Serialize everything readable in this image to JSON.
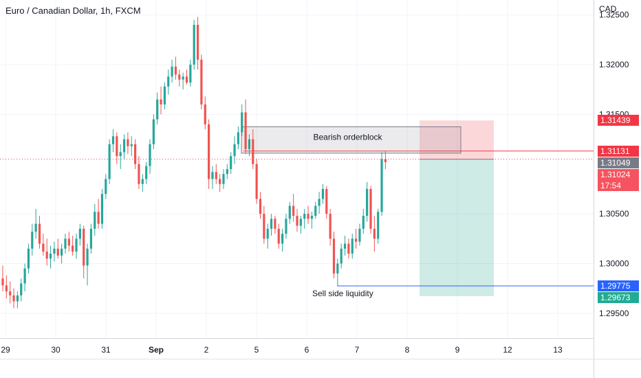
{
  "header": {
    "title": "Euro / Canadian Dollar, 1h, FXCM",
    "currency": "CAD"
  },
  "chart_data": {
    "type": "candlestick",
    "symbol": "EURCAD",
    "timeframe": "1h",
    "source": "FXCM",
    "y_axis": {
      "ticks": [
        "1.32500",
        "1.32000",
        "1.31500",
        "1.30500",
        "1.30000",
        "1.29500"
      ],
      "tick_values": [
        1.325,
        1.32,
        1.315,
        1.305,
        1.3,
        1.295
      ],
      "ylim": [
        1.2925,
        1.3265
      ]
    },
    "x_axis": {
      "ticks": [
        "29",
        "30",
        "31",
        "Sep",
        "2",
        "5",
        "6",
        "7",
        "8",
        "9",
        "12",
        "13"
      ],
      "tick_positions": [
        0,
        1,
        2,
        3,
        4,
        5,
        6,
        7,
        8,
        9,
        10,
        11
      ],
      "xlim": [
        0,
        11.9
      ]
    },
    "candles_ohlc": [
      [
        1.2985,
        1.2998,
        1.2972,
        1.2978
      ],
      [
        1.2978,
        1.2988,
        1.2965,
        1.2972
      ],
      [
        1.2972,
        1.2982,
        1.296,
        1.2968
      ],
      [
        1.2968,
        1.2975,
        1.2955,
        1.2962
      ],
      [
        1.2962,
        1.2972,
        1.2955,
        1.2968
      ],
      [
        1.2968,
        1.2985,
        1.2962,
        1.298
      ],
      [
        1.298,
        1.3,
        1.2972,
        1.2995
      ],
      [
        1.2995,
        1.302,
        1.299,
        1.3015
      ],
      [
        1.3015,
        1.304,
        1.3008,
        1.3032
      ],
      [
        1.3032,
        1.3055,
        1.3025,
        1.304
      ],
      [
        1.304,
        1.3048,
        1.3015,
        1.302
      ],
      [
        1.302,
        1.303,
        1.3008,
        1.3012
      ],
      [
        1.3012,
        1.3025,
        1.2998,
        1.3005
      ],
      [
        1.3005,
        1.3018,
        1.2995,
        1.301
      ],
      [
        1.301,
        1.3022,
        1.3002,
        1.3015
      ],
      [
        1.3015,
        1.3025,
        1.3005,
        1.3008
      ],
      [
        1.3008,
        1.302,
        1.3,
        1.3015
      ],
      [
        1.3015,
        1.303,
        1.301,
        1.3025
      ],
      [
        1.3025,
        1.3032,
        1.3012,
        1.3018
      ],
      [
        1.3018,
        1.3028,
        1.3008,
        1.3012
      ],
      [
        1.3012,
        1.303,
        1.3005,
        1.3025
      ],
      [
        1.3025,
        1.304,
        1.3018,
        1.3035
      ],
      [
        1.3035,
        1.3038,
        1.2985,
        1.2998
      ],
      [
        1.2998,
        1.302,
        1.2978,
        1.3015
      ],
      [
        1.3015,
        1.304,
        1.301,
        1.3035
      ],
      [
        1.3035,
        1.306,
        1.3028,
        1.3052
      ],
      [
        1.3052,
        1.3065,
        1.3035,
        1.304
      ],
      [
        1.304,
        1.3075,
        1.3035,
        1.307
      ],
      [
        1.307,
        1.309,
        1.3065,
        1.3085
      ],
      [
        1.3085,
        1.3125,
        1.308,
        1.312
      ],
      [
        1.312,
        1.3135,
        1.3112,
        1.3128
      ],
      [
        1.3128,
        1.3132,
        1.31,
        1.3108
      ],
      [
        1.3108,
        1.312,
        1.3095,
        1.3112
      ],
      [
        1.3112,
        1.313,
        1.3105,
        1.3125
      ],
      [
        1.3125,
        1.3132,
        1.311,
        1.3118
      ],
      [
        1.3118,
        1.3128,
        1.3108,
        1.312
      ],
      [
        1.312,
        1.3125,
        1.3095,
        1.31
      ],
      [
        1.31,
        1.3108,
        1.3075,
        1.308
      ],
      [
        1.308,
        1.309,
        1.3072,
        1.3085
      ],
      [
        1.3085,
        1.3102,
        1.308,
        1.3098
      ],
      [
        1.3098,
        1.3125,
        1.309,
        1.312
      ],
      [
        1.312,
        1.315,
        1.3115,
        1.3145
      ],
      [
        1.3145,
        1.3172,
        1.314,
        1.3165
      ],
      [
        1.3165,
        1.3178,
        1.315,
        1.316
      ],
      [
        1.316,
        1.3182,
        1.3155,
        1.3178
      ],
      [
        1.3178,
        1.3195,
        1.317,
        1.3188
      ],
      [
        1.3188,
        1.3205,
        1.3182,
        1.3198
      ],
      [
        1.3198,
        1.3208,
        1.3185,
        1.319
      ],
      [
        1.319,
        1.3195,
        1.3178,
        1.3185
      ],
      [
        1.3185,
        1.3192,
        1.3175,
        1.3188
      ],
      [
        1.3188,
        1.3195,
        1.318,
        1.3182
      ],
      [
        1.3182,
        1.3205,
        1.3178,
        1.32
      ],
      [
        1.32,
        1.3245,
        1.3195,
        1.324
      ],
      [
        1.324,
        1.3248,
        1.3195,
        1.3205
      ],
      [
        1.3205,
        1.321,
        1.3155,
        1.316
      ],
      [
        1.316,
        1.3168,
        1.3135,
        1.314
      ],
      [
        1.314,
        1.3145,
        1.3075,
        1.3085
      ],
      [
        1.3085,
        1.3098,
        1.3075,
        1.3092
      ],
      [
        1.3092,
        1.31,
        1.308,
        1.3085
      ],
      [
        1.3085,
        1.309,
        1.3072,
        1.308
      ],
      [
        1.308,
        1.3095,
        1.3075,
        1.309
      ],
      [
        1.309,
        1.31,
        1.3085,
        1.3095
      ],
      [
        1.3095,
        1.3112,
        1.309,
        1.3108
      ],
      [
        1.3108,
        1.3128,
        1.31,
        1.312
      ],
      [
        1.312,
        1.3138,
        1.3115,
        1.3132
      ],
      [
        1.3132,
        1.316,
        1.3128,
        1.3152
      ],
      [
        1.3152,
        1.3165,
        1.311,
        1.3115
      ],
      [
        1.3115,
        1.313,
        1.3108,
        1.3125
      ],
      [
        1.3125,
        1.3135,
        1.3095,
        1.31
      ],
      [
        1.31,
        1.3105,
        1.306,
        1.3065
      ],
      [
        1.3065,
        1.3072,
        1.3045,
        1.305
      ],
      [
        1.305,
        1.3058,
        1.302,
        1.3025
      ],
      [
        1.3025,
        1.304,
        1.3015,
        1.3035
      ],
      [
        1.3035,
        1.305,
        1.3028,
        1.3045
      ],
      [
        1.3045,
        1.3048,
        1.303,
        1.3035
      ],
      [
        1.3035,
        1.304,
        1.3015,
        1.302
      ],
      [
        1.302,
        1.3035,
        1.3012,
        1.303
      ],
      [
        1.303,
        1.305,
        1.3025,
        1.3045
      ],
      [
        1.3045,
        1.3062,
        1.304,
        1.3058
      ],
      [
        1.3058,
        1.307,
        1.3042,
        1.3048
      ],
      [
        1.3048,
        1.3055,
        1.3032,
        1.3038
      ],
      [
        1.3038,
        1.3048,
        1.303,
        1.3045
      ],
      [
        1.3045,
        1.3055,
        1.3035,
        1.305
      ],
      [
        1.305,
        1.3058,
        1.304,
        1.3045
      ],
      [
        1.3045,
        1.3052,
        1.3035,
        1.3048
      ],
      [
        1.3048,
        1.3062,
        1.3045,
        1.3058
      ],
      [
        1.3058,
        1.3072,
        1.305,
        1.3065
      ],
      [
        1.3065,
        1.308,
        1.306,
        1.3075
      ],
      [
        1.3075,
        1.3078,
        1.3045,
        1.305
      ],
      [
        1.305,
        1.3055,
        1.3018,
        1.3025
      ],
      [
        1.3025,
        1.3032,
        1.2985,
        1.299
      ],
      [
        1.299,
        1.3005,
        1.2978,
        1.3
      ],
      [
        1.3,
        1.302,
        1.2995,
        1.3015
      ],
      [
        1.3015,
        1.3028,
        1.3008,
        1.302
      ],
      [
        1.302,
        1.3025,
        1.3005,
        1.301
      ],
      [
        1.301,
        1.303,
        1.3005,
        1.3025
      ],
      [
        1.3025,
        1.3035,
        1.3015,
        1.3022
      ],
      [
        1.3022,
        1.304,
        1.3018,
        1.3035
      ],
      [
        1.3035,
        1.3055,
        1.303,
        1.3048
      ],
      [
        1.3048,
        1.3082,
        1.3042,
        1.3075
      ],
      [
        1.3075,
        1.3078,
        1.303,
        1.3035
      ],
      [
        1.3035,
        1.3048,
        1.3012,
        1.3025
      ],
      [
        1.3025,
        1.3055,
        1.302,
        1.3052
      ],
      [
        1.3052,
        1.3112,
        1.3048,
        1.3105
      ],
      [
        1.3105,
        1.3113,
        1.3095,
        1.3102
      ]
    ],
    "annotations": {
      "orderblock": {
        "label": "Bearish orderblock",
        "y_top": 1.31375,
        "y_bottom": 1.3111,
        "x_start": 4.82,
        "x_end": 9.15
      },
      "liquidity": {
        "label": "Sell side liquidity",
        "y": 1.29775,
        "x_start": 6.7,
        "x_end": 11.9
      },
      "position": {
        "type": "short",
        "entry": 1.31049,
        "stop": 1.31439,
        "target": 1.29673,
        "x_start": 8.3,
        "x_end": 9.8
      },
      "current_price": 1.31049,
      "reference_line": 1.31131
    },
    "price_labels": [
      {
        "value": "1.31439",
        "y": 1.31439,
        "color": "#f23645"
      },
      {
        "value": "1.31131",
        "y": 1.31131,
        "color": "#f23645"
      },
      {
        "value": "1.31049",
        "y": 1.31049,
        "color": "#787b86"
      },
      {
        "value": "1.31024",
        "y": 1.31024,
        "color": "#f7525f",
        "sub": "17:54"
      },
      {
        "value": "1.29775",
        "y": 1.29775,
        "color": "#2962ff"
      },
      {
        "value": "1.29673",
        "y": 1.29673,
        "color": "#22ab94"
      }
    ],
    "colors": {
      "up": "#26a69a",
      "down": "#ef5350",
      "grid": "#f0f3fa",
      "axis": "#e0e3eb"
    },
    "grid": true
  }
}
